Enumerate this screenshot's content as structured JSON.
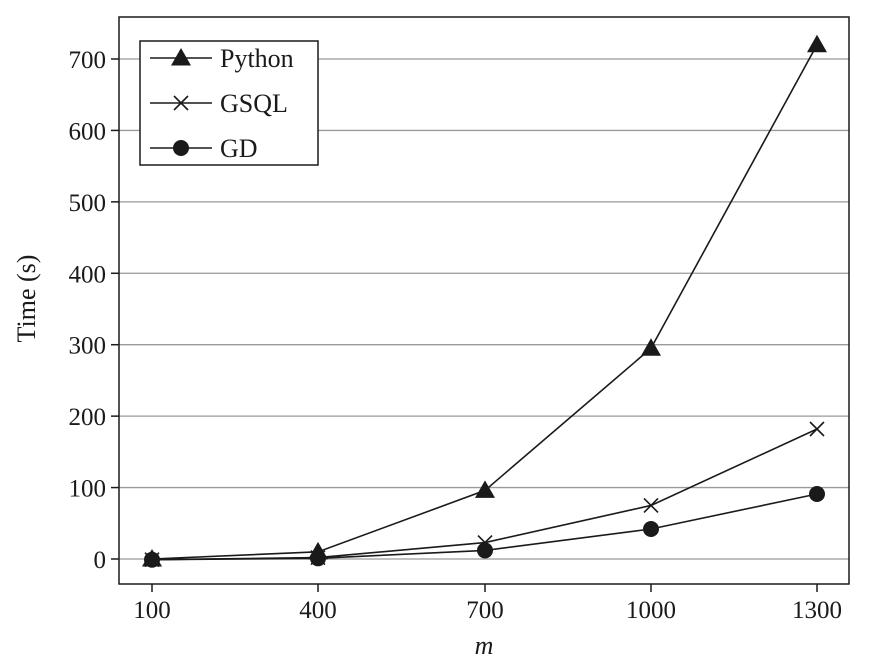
{
  "chart_data": {
    "type": "line",
    "title": "",
    "xlabel": "m",
    "ylabel": "Time (s)",
    "x": [
      100,
      400,
      700,
      1000,
      1300
    ],
    "xticks": [
      "100",
      "400",
      "700",
      "1000",
      "1300"
    ],
    "yticks": [
      "0",
      "100",
      "200",
      "300",
      "400",
      "500",
      "600",
      "700"
    ],
    "ylim": [
      -35,
      760
    ],
    "grid": "horizontal",
    "legend_position": "top-left",
    "series": [
      {
        "name": "Python",
        "marker": "triangle",
        "values": [
          0,
          10,
          96,
          295,
          720
        ]
      },
      {
        "name": "GSQL",
        "marker": "x",
        "values": [
          -1,
          2,
          23,
          75,
          182
        ]
      },
      {
        "name": "GD",
        "marker": "circle",
        "values": [
          -1,
          1,
          12,
          42,
          91
        ]
      }
    ],
    "colors": {
      "line": "#1a1a1a",
      "grid": "#9a9a9a",
      "background": "#ffffff"
    }
  }
}
